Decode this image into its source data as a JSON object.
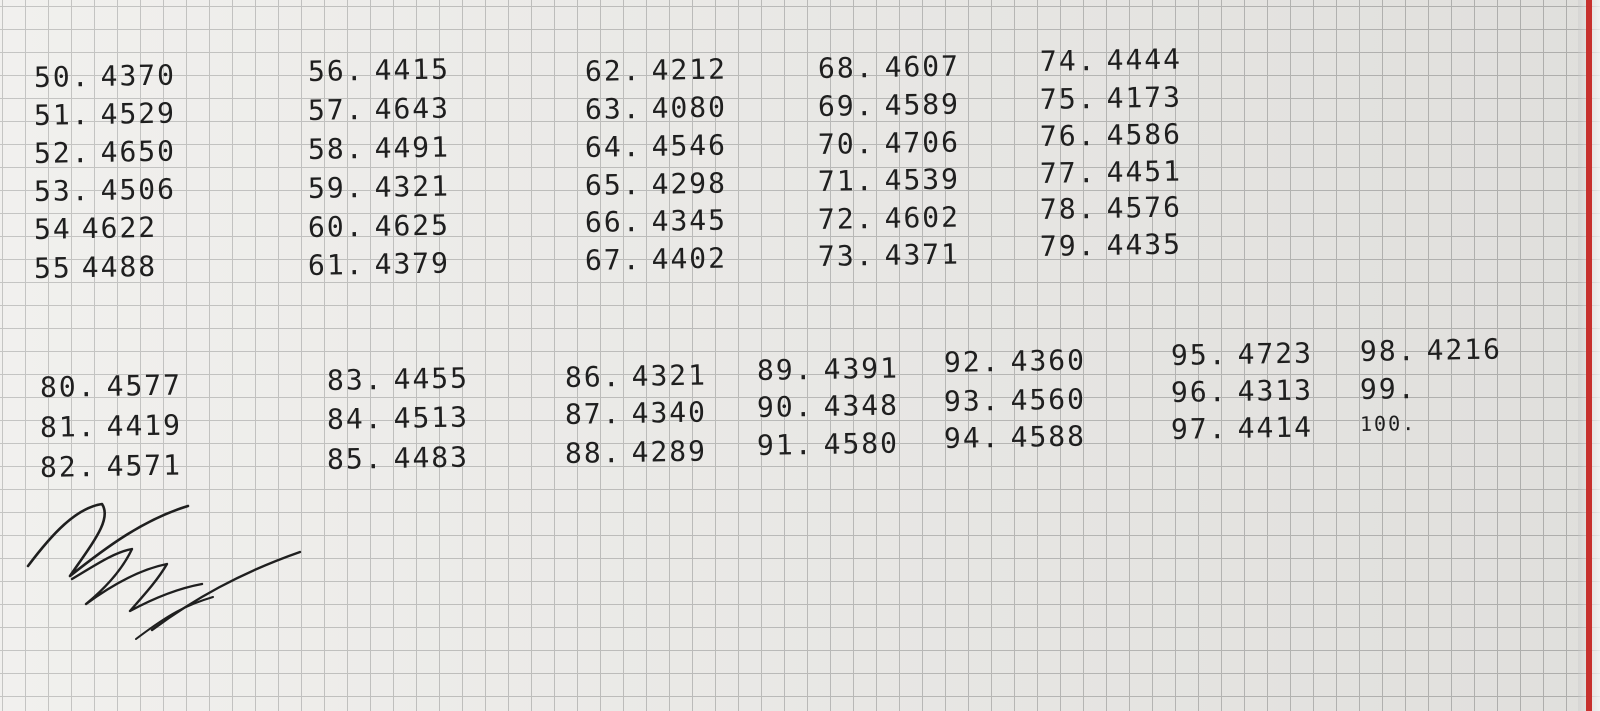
{
  "notebook": {
    "colors": {
      "paper": "#eeedea",
      "grid": "#b8b8b6",
      "ink": "#1f1f1f",
      "margin": "#c7312e"
    },
    "entries": [
      {
        "num": "50.",
        "value": "4370"
      },
      {
        "num": "51.",
        "value": "4529"
      },
      {
        "num": "52.",
        "value": "4650"
      },
      {
        "num": "53.",
        "value": "4506"
      },
      {
        "num": "54",
        "value": "4622"
      },
      {
        "num": "55",
        "value": "4488"
      },
      {
        "num": "56.",
        "value": "4415"
      },
      {
        "num": "57.",
        "value": "4643"
      },
      {
        "num": "58.",
        "value": "4491"
      },
      {
        "num": "59.",
        "value": "4321"
      },
      {
        "num": "60.",
        "value": "4625"
      },
      {
        "num": "61.",
        "value": "4379"
      },
      {
        "num": "62.",
        "value": "4212"
      },
      {
        "num": "63.",
        "value": "4080"
      },
      {
        "num": "64.",
        "value": "4546"
      },
      {
        "num": "65.",
        "value": "4298"
      },
      {
        "num": "66.",
        "value": "4345"
      },
      {
        "num": "67.",
        "value": "4402"
      },
      {
        "num": "68.",
        "value": "4607"
      },
      {
        "num": "69.",
        "value": "4589"
      },
      {
        "num": "70.",
        "value": "4706"
      },
      {
        "num": "71.",
        "value": "4539"
      },
      {
        "num": "72.",
        "value": "4602"
      },
      {
        "num": "73.",
        "value": "4371"
      },
      {
        "num": "74.",
        "value": "4444"
      },
      {
        "num": "75.",
        "value": "4173"
      },
      {
        "num": "76.",
        "value": "4586"
      },
      {
        "num": "77.",
        "value": "4451"
      },
      {
        "num": "78.",
        "value": "4576"
      },
      {
        "num": "79.",
        "value": "4435"
      },
      {
        "num": "80.",
        "value": "4577"
      },
      {
        "num": "81.",
        "value": "4419"
      },
      {
        "num": "82.",
        "value": "4571"
      },
      {
        "num": "83.",
        "value": "4455"
      },
      {
        "num": "84.",
        "value": "4513"
      },
      {
        "num": "85.",
        "value": "4483"
      },
      {
        "num": "86.",
        "value": "4321"
      },
      {
        "num": "87.",
        "value": "4340"
      },
      {
        "num": "88.",
        "value": "4289"
      },
      {
        "num": "89.",
        "value": "4391"
      },
      {
        "num": "90.",
        "value": "4348"
      },
      {
        "num": "91.",
        "value": "4580"
      },
      {
        "num": "92.",
        "value": "4360"
      },
      {
        "num": "93.",
        "value": "4560"
      },
      {
        "num": "94.",
        "value": "4588"
      },
      {
        "num": "95.",
        "value": "4723"
      },
      {
        "num": "96.",
        "value": "4313"
      },
      {
        "num": "97.",
        "value": "4414"
      },
      {
        "num": "98.",
        "value": "4216"
      },
      {
        "num": "99.",
        "value": ""
      },
      {
        "num": "100.",
        "value": ""
      }
    ]
  }
}
